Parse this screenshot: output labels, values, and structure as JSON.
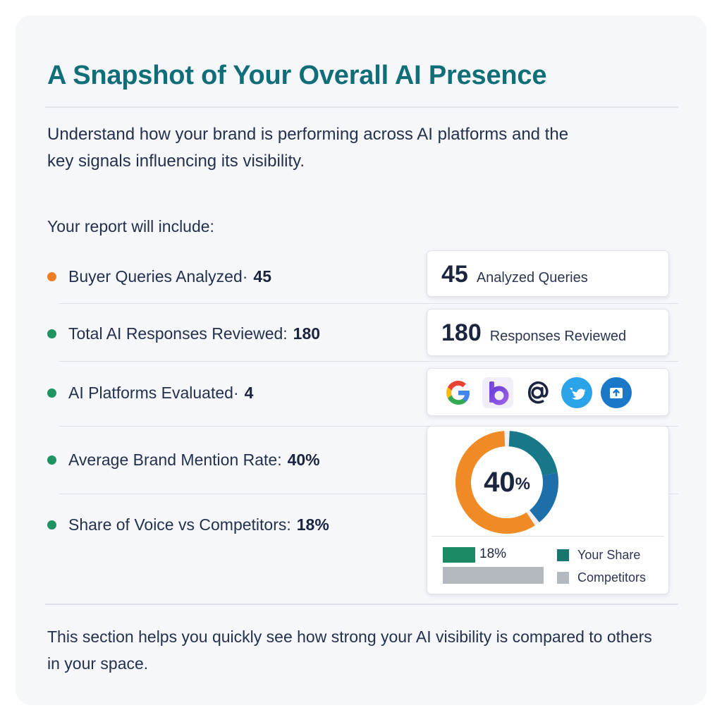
{
  "title": "A Snapshot of Your Overall AI Presence",
  "subtitle": "Understand how your brand is performing across AI platforms and the key signals influencing its visibility.",
  "intro": "Your report will include:",
  "items": [
    {
      "label": "Buyer Queries Analyzed·",
      "value": "45",
      "color": "#ef7d22"
    },
    {
      "label": "Total AI Responses Reviewed:",
      "value": "180",
      "color": "#1f9460"
    },
    {
      "label": "AI Platforms Evaluated·",
      "value": "4",
      "color": "#1f9460"
    },
    {
      "label": "Average Brand Mention Rate:",
      "value": "40%",
      "color": "#1f9460"
    },
    {
      "label": "Share of Voice vs Competitors:",
      "value": "18%",
      "color": "#1f9460"
    }
  ],
  "stats": {
    "queries": {
      "number": "45",
      "label": "Analyzed Queries"
    },
    "responses": {
      "number": "180",
      "label": "Responses Reviewed"
    }
  },
  "platform_icons": [
    "google-icon",
    "b-logo-icon",
    "at-sign-icon",
    "bird-icon",
    "upload-icon"
  ],
  "mention_chart": {
    "number": "40",
    "percent_sign": "%",
    "mention_rate": 40,
    "colors": {
      "orange": "#ef8a24",
      "teal": "#17788a",
      "blue": "#1c6fa8"
    }
  },
  "share_of_voice": {
    "your_share_label": "18%",
    "your_share": 18,
    "legend_your": "Your Share",
    "legend_competitors": "Competitors",
    "colors": {
      "your": "#1d8a66",
      "competitors": "#b4b8bf",
      "legend_your": "#18756f"
    }
  },
  "footer": "This section helps you quickly see how strong your AI visibility is compared to others in your space."
}
